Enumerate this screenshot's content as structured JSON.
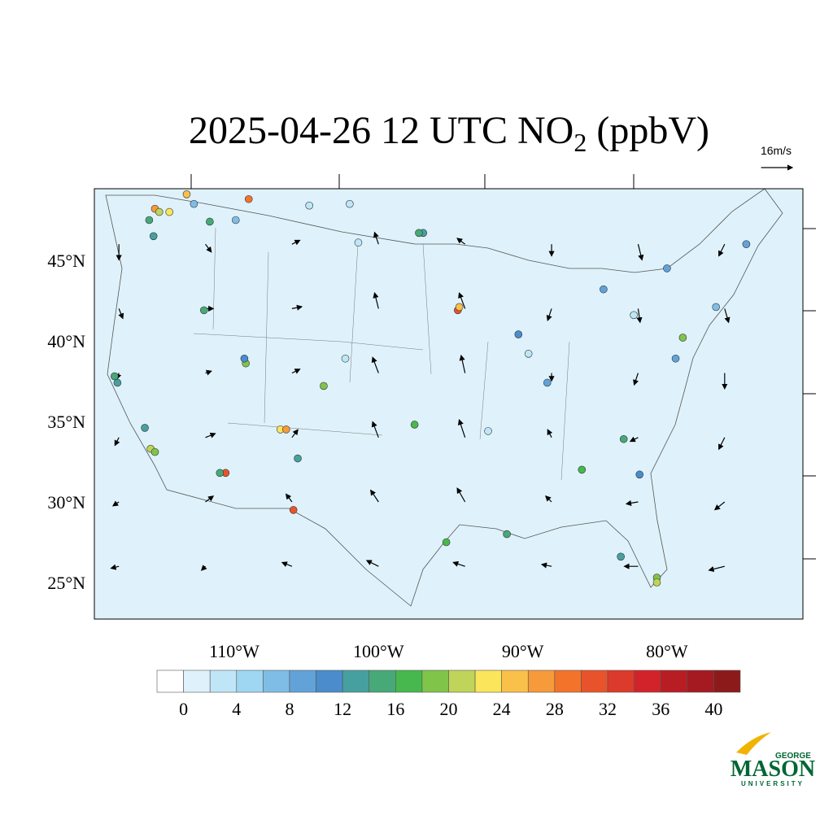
{
  "title": {
    "prefix": "2025-04-26 12 UTC NO",
    "subscript": "2",
    "suffix": " (ppbV)"
  },
  "vector_reference": {
    "label": "16m/s",
    "speed": 16
  },
  "lat_labels": [
    {
      "value": 45,
      "label": "45°N"
    },
    {
      "value": 40,
      "label": "40°N"
    },
    {
      "value": 35,
      "label": "35°N"
    },
    {
      "value": 30,
      "label": "30°N"
    },
    {
      "value": 25,
      "label": "25°N"
    }
  ],
  "lon_labels": [
    {
      "value": -110,
      "label": "110°W"
    },
    {
      "value": -100,
      "label": "100°W"
    },
    {
      "value": -90,
      "label": "90°W"
    },
    {
      "value": -80,
      "label": "80°W"
    }
  ],
  "colorbar": {
    "levels": [
      0,
      2,
      4,
      6,
      8,
      10,
      12,
      14,
      16,
      18,
      20,
      22,
      24,
      26,
      28,
      30,
      32,
      34,
      36,
      38,
      40
    ],
    "colors": [
      "#ffffff",
      "#dff2fb",
      "#bfe6f7",
      "#9fd6f2",
      "#7fbde6",
      "#61a3d9",
      "#4a8ccc",
      "#47a0a0",
      "#47a878",
      "#47b84e",
      "#80c44a",
      "#c0d45a",
      "#fbe55a",
      "#f9c04a",
      "#f69a3a",
      "#f3732b",
      "#e8532b",
      "#dc3a2b",
      "#d2232a",
      "#b81d24",
      "#a41a20",
      "#8c1a1a"
    ],
    "ticks": [
      0,
      4,
      8,
      12,
      16,
      20,
      24,
      28,
      32,
      36,
      40
    ]
  },
  "stations": [
    [
      -115.5,
      48.2,
      26
    ],
    [
      -115.2,
      48.0,
      20
    ],
    [
      -114.5,
      48.0,
      22
    ],
    [
      -115.9,
      47.5,
      14
    ],
    [
      -115.6,
      46.5,
      12
    ],
    [
      -113.3,
      49.1,
      24
    ],
    [
      -109.0,
      48.8,
      28
    ],
    [
      -111.7,
      47.4,
      14
    ],
    [
      -109.9,
      47.5,
      6
    ],
    [
      -112.8,
      48.5,
      6
    ],
    [
      -112.1,
      41.9,
      14
    ],
    [
      -109.2,
      38.6,
      18
    ],
    [
      -109.3,
      38.9,
      10
    ],
    [
      -106.8,
      34.5,
      22
    ],
    [
      -106.4,
      34.5,
      26
    ],
    [
      -110.6,
      31.8,
      30
    ],
    [
      -111.0,
      31.8,
      14
    ],
    [
      -105.9,
      29.5,
      30
    ],
    [
      -103.8,
      37.2,
      18
    ],
    [
      -115.8,
      33.3,
      20
    ],
    [
      -115.5,
      33.1,
      18
    ],
    [
      -116.2,
      34.6,
      12
    ],
    [
      -118.1,
      37.4,
      12
    ],
    [
      -118.3,
      37.8,
      14
    ],
    [
      -94.5,
      41.9,
      30
    ],
    [
      -94.4,
      42.1,
      24
    ],
    [
      -90.3,
      40.4,
      10
    ],
    [
      -88.3,
      37.4,
      8
    ],
    [
      -84.4,
      43.2,
      8
    ],
    [
      -80.0,
      44.5,
      8
    ],
    [
      -78.9,
      40.2,
      18
    ],
    [
      -79.4,
      38.9,
      8
    ],
    [
      -83.0,
      33.9,
      14
    ],
    [
      -85.9,
      32.0,
      16
    ],
    [
      -81.9,
      31.7,
      10
    ],
    [
      -83.2,
      26.6,
      12
    ],
    [
      -80.7,
      25.3,
      18
    ],
    [
      -80.7,
      25.0,
      20
    ],
    [
      -91.1,
      28.0,
      14
    ],
    [
      -95.3,
      27.5,
      16
    ],
    [
      -97.5,
      34.8,
      16
    ],
    [
      -105.6,
      32.7,
      12
    ],
    [
      -101.4,
      46.1,
      2
    ],
    [
      -102.3,
      38.9,
      2
    ],
    [
      -96.9,
      46.7,
      12
    ],
    [
      -97.2,
      46.7,
      14
    ],
    [
      -74.5,
      46.0,
      8
    ],
    [
      -76.6,
      42.1,
      6
    ],
    [
      -82.3,
      41.6,
      2
    ],
    [
      -89.6,
      39.2,
      2
    ],
    [
      -92.4,
      34.4,
      2
    ],
    [
      -102.0,
      48.5,
      2
    ],
    [
      -104.8,
      48.4,
      2
    ]
  ],
  "wind": [
    [
      -118,
      46,
      0,
      -8
    ],
    [
      -112,
      46,
      3,
      -4
    ],
    [
      -106,
      46,
      4,
      2
    ],
    [
      -100,
      46,
      -2,
      6
    ],
    [
      -94,
      46,
      -4,
      3
    ],
    [
      -88,
      46,
      0,
      -6
    ],
    [
      -82,
      46,
      2,
      -8
    ],
    [
      -76,
      46,
      -3,
      -6
    ],
    [
      -118,
      42,
      2,
      -5
    ],
    [
      -112,
      42,
      4,
      0
    ],
    [
      -106,
      42,
      5,
      1
    ],
    [
      -100,
      42,
      -2,
      8
    ],
    [
      -94,
      42,
      -3,
      8
    ],
    [
      -88,
      42,
      -2,
      -6
    ],
    [
      -82,
      42,
      1,
      -7
    ],
    [
      -76,
      42,
      2,
      -7
    ],
    [
      -118,
      38,
      -1,
      -3
    ],
    [
      -112,
      38,
      3,
      1
    ],
    [
      -106,
      38,
      4,
      2
    ],
    [
      -100,
      38,
      -3,
      8
    ],
    [
      -94,
      38,
      -2,
      9
    ],
    [
      -88,
      38,
      0,
      -4
    ],
    [
      -82,
      38,
      -2,
      -6
    ],
    [
      -76,
      38,
      0,
      -8
    ],
    [
      -118,
      34,
      -2,
      -4
    ],
    [
      -112,
      34,
      5,
      2
    ],
    [
      -106,
      34,
      3,
      4
    ],
    [
      -100,
      34,
      -3,
      8
    ],
    [
      -94,
      34,
      -3,
      9
    ],
    [
      -88,
      34,
      -2,
      4
    ],
    [
      -82,
      34,
      -4,
      -2
    ],
    [
      -76,
      34,
      -3,
      -6
    ],
    [
      -118,
      30,
      -3,
      -2
    ],
    [
      -112,
      30,
      4,
      3
    ],
    [
      -106,
      30,
      -3,
      4
    ],
    [
      -100,
      30,
      -4,
      6
    ],
    [
      -94,
      30,
      -4,
      7
    ],
    [
      -88,
      30,
      -3,
      3
    ],
    [
      -82,
      30,
      -6,
      -1
    ],
    [
      -76,
      30,
      -5,
      -4
    ],
    [
      -118,
      26,
      -4,
      -1
    ],
    [
      -112,
      26,
      -2,
      -2
    ],
    [
      -106,
      26,
      -5,
      2
    ],
    [
      -100,
      26,
      -6,
      3
    ],
    [
      -94,
      26,
      -6,
      2
    ],
    [
      -88,
      26,
      -5,
      1
    ],
    [
      -82,
      26,
      -7,
      0
    ],
    [
      -76,
      26,
      -8,
      -2
    ]
  ],
  "logo": {
    "top": "GEORGE",
    "name": "MASON",
    "bottom": "UNIVERSITY"
  }
}
